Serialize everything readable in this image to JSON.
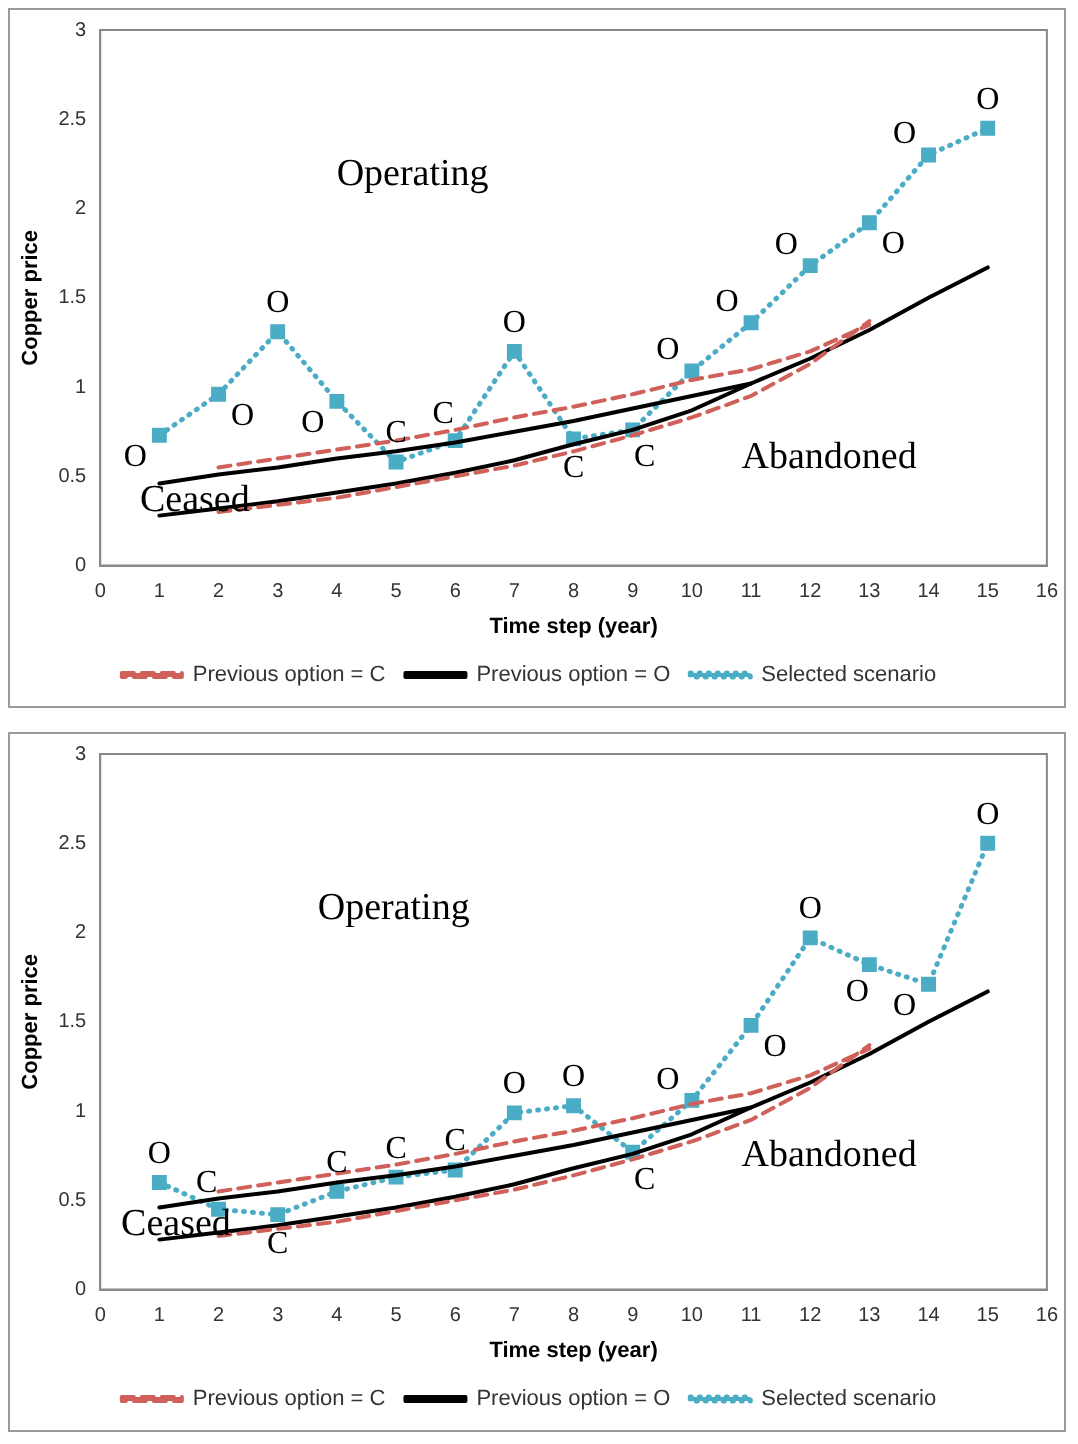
{
  "chart_data": [
    {
      "type": "line",
      "xlabel": "Time step (year)",
      "ylabel": "Copper price",
      "xlim": [
        0,
        16
      ],
      "xticks": [
        0,
        1,
        2,
        3,
        4,
        5,
        6,
        7,
        8,
        9,
        10,
        11,
        12,
        13,
        14,
        15,
        16
      ],
      "ylim": [
        0,
        3
      ],
      "yticks": [
        0,
        0.5,
        1,
        1.5,
        2,
        2.5,
        3
      ],
      "grid": false,
      "legend": "bottom",
      "series": [
        {
          "name": "Previous option = C",
          "color": "#d0605a",
          "line_style": "dashed",
          "marker": "none",
          "x": [
            2,
            3,
            4,
            5,
            6,
            7,
            8,
            9,
            10,
            11,
            12,
            13
          ],
          "values": [
            0.55,
            0.6,
            0.65,
            0.7,
            0.76,
            0.83,
            0.89,
            0.96,
            1.04,
            1.1,
            1.2,
            1.35
          ]
        },
        {
          "color": "#d0605a",
          "line_style": "dashed",
          "marker": "none",
          "x": [
            2,
            3,
            4,
            5,
            6,
            7,
            8,
            9,
            10,
            11,
            12,
            13
          ],
          "values": [
            0.3,
            0.34,
            0.38,
            0.44,
            0.5,
            0.56,
            0.64,
            0.73,
            0.83,
            0.95,
            1.13,
            1.37
          ]
        },
        {
          "name": "Previous option = O",
          "color": "#000000",
          "line_style": "solid",
          "marker": "none",
          "x": [
            1,
            2,
            3,
            4,
            5,
            6,
            7,
            8,
            9,
            10,
            11,
            12,
            13,
            14,
            15
          ],
          "values": [
            0.46,
            0.51,
            0.55,
            0.6,
            0.64,
            0.69,
            0.75,
            0.81,
            0.88,
            0.95,
            1.02,
            1.16,
            1.32,
            1.5,
            1.67
          ]
        },
        {
          "color": "#000000",
          "line_style": "solid",
          "marker": "none",
          "x": [
            1,
            2,
            3,
            4,
            5,
            6,
            7,
            8,
            9,
            10,
            11
          ],
          "values": [
            0.28,
            0.32,
            0.36,
            0.41,
            0.46,
            0.52,
            0.59,
            0.68,
            0.76,
            0.87,
            1.02
          ]
        },
        {
          "name": "Selected scenario",
          "color": "#4bacc6",
          "line_style": "dotted",
          "marker": "square",
          "x": [
            1,
            2,
            3,
            4,
            5,
            6,
            7,
            8,
            9,
            10,
            11,
            12,
            13,
            14,
            15
          ],
          "values": [
            0.73,
            0.96,
            1.31,
            0.92,
            0.58,
            0.7,
            1.2,
            0.71,
            0.76,
            1.09,
            1.36,
            1.68,
            1.92,
            2.3,
            2.45
          ]
        }
      ],
      "annotations": [
        "Operating",
        "Abandoned",
        "Ceased",
        {
          "text": "O",
          "x": 1,
          "y": 0.73
        },
        {
          "text": "O",
          "x": 2,
          "y": 0.96
        },
        {
          "text": "O",
          "x": 3,
          "y": 1.31
        },
        {
          "text": "O",
          "x": 4,
          "y": 0.92
        },
        {
          "text": "C",
          "x": 5,
          "y": 0.58
        },
        {
          "text": "C",
          "x": 6,
          "y": 0.7
        },
        {
          "text": "O",
          "x": 7,
          "y": 1.2
        },
        {
          "text": "C",
          "x": 8,
          "y": 0.71
        },
        {
          "text": "C",
          "x": 9,
          "y": 0.76
        },
        {
          "text": "O",
          "x": 10,
          "y": 1.09
        },
        {
          "text": "O",
          "x": 11,
          "y": 1.36
        },
        {
          "text": "O",
          "x": 12,
          "y": 1.68
        },
        {
          "text": "O",
          "x": 13,
          "y": 1.92
        },
        {
          "text": "O",
          "x": 14,
          "y": 2.3
        },
        {
          "text": "O",
          "x": 15,
          "y": 2.45
        }
      ]
    },
    {
      "type": "line",
      "xlabel": "Time step (year)",
      "ylabel": "Copper price",
      "xlim": [
        0,
        16
      ],
      "xticks": [
        0,
        1,
        2,
        3,
        4,
        5,
        6,
        7,
        8,
        9,
        10,
        11,
        12,
        13,
        14,
        15,
        16
      ],
      "ylim": [
        0,
        3
      ],
      "yticks": [
        0,
        0.5,
        1,
        1.5,
        2,
        2.5,
        3
      ],
      "grid": false,
      "legend": "bottom",
      "series": [
        {
          "name": "Previous option = C",
          "color": "#d0605a",
          "line_style": "dashed",
          "marker": "none",
          "x": [
            2,
            3,
            4,
            5,
            6,
            7,
            8,
            9,
            10,
            11,
            12,
            13
          ],
          "values": [
            0.55,
            0.6,
            0.65,
            0.7,
            0.76,
            0.83,
            0.89,
            0.96,
            1.04,
            1.1,
            1.2,
            1.35
          ]
        },
        {
          "color": "#d0605a",
          "line_style": "dashed",
          "marker": "none",
          "x": [
            2,
            3,
            4,
            5,
            6,
            7,
            8,
            9,
            10,
            11,
            12,
            13
          ],
          "values": [
            0.3,
            0.34,
            0.38,
            0.44,
            0.5,
            0.56,
            0.64,
            0.73,
            0.83,
            0.95,
            1.13,
            1.37
          ]
        },
        {
          "name": "Previous option = O",
          "color": "#000000",
          "line_style": "solid",
          "marker": "none",
          "x": [
            1,
            2,
            3,
            4,
            5,
            6,
            7,
            8,
            9,
            10,
            11,
            12,
            13,
            14,
            15
          ],
          "values": [
            0.46,
            0.51,
            0.55,
            0.6,
            0.64,
            0.69,
            0.75,
            0.81,
            0.88,
            0.95,
            1.02,
            1.16,
            1.32,
            1.5,
            1.67
          ]
        },
        {
          "color": "#000000",
          "line_style": "solid",
          "marker": "none",
          "x": [
            1,
            2,
            3,
            4,
            5,
            6,
            7,
            8,
            9,
            10,
            11
          ],
          "values": [
            0.28,
            0.32,
            0.36,
            0.41,
            0.46,
            0.52,
            0.59,
            0.68,
            0.76,
            0.87,
            1.02
          ]
        },
        {
          "name": "Selected scenario",
          "color": "#4bacc6",
          "line_style": "dotted",
          "marker": "square",
          "x": [
            1,
            2,
            3,
            4,
            5,
            6,
            7,
            8,
            9,
            10,
            11,
            12,
            13,
            14,
            15
          ],
          "values": [
            0.6,
            0.45,
            0.42,
            0.55,
            0.63,
            0.67,
            0.99,
            1.03,
            0.77,
            1.06,
            1.48,
            1.97,
            1.82,
            1.71,
            2.5
          ]
        }
      ],
      "annotations": [
        "Operating",
        "Abandoned",
        "Ceased",
        {
          "text": "O",
          "x": 1,
          "y": 0.6
        },
        {
          "text": "C",
          "x": 2,
          "y": 0.45
        },
        {
          "text": "C",
          "x": 3,
          "y": 0.42
        },
        {
          "text": "C",
          "x": 4,
          "y": 0.55
        },
        {
          "text": "C",
          "x": 5,
          "y": 0.63
        },
        {
          "text": "C",
          "x": 6,
          "y": 0.67
        },
        {
          "text": "O",
          "x": 7,
          "y": 0.99
        },
        {
          "text": "O",
          "x": 8,
          "y": 1.03
        },
        {
          "text": "C",
          "x": 9,
          "y": 0.77
        },
        {
          "text": "O",
          "x": 10,
          "y": 1.06
        },
        {
          "text": "O",
          "x": 11,
          "y": 1.48
        },
        {
          "text": "O",
          "x": 12,
          "y": 1.97
        },
        {
          "text": "O",
          "x": 13,
          "y": 1.82
        },
        {
          "text": "O",
          "x": 14,
          "y": 1.71
        },
        {
          "text": "O",
          "x": 15,
          "y": 2.5
        }
      ]
    }
  ]
}
